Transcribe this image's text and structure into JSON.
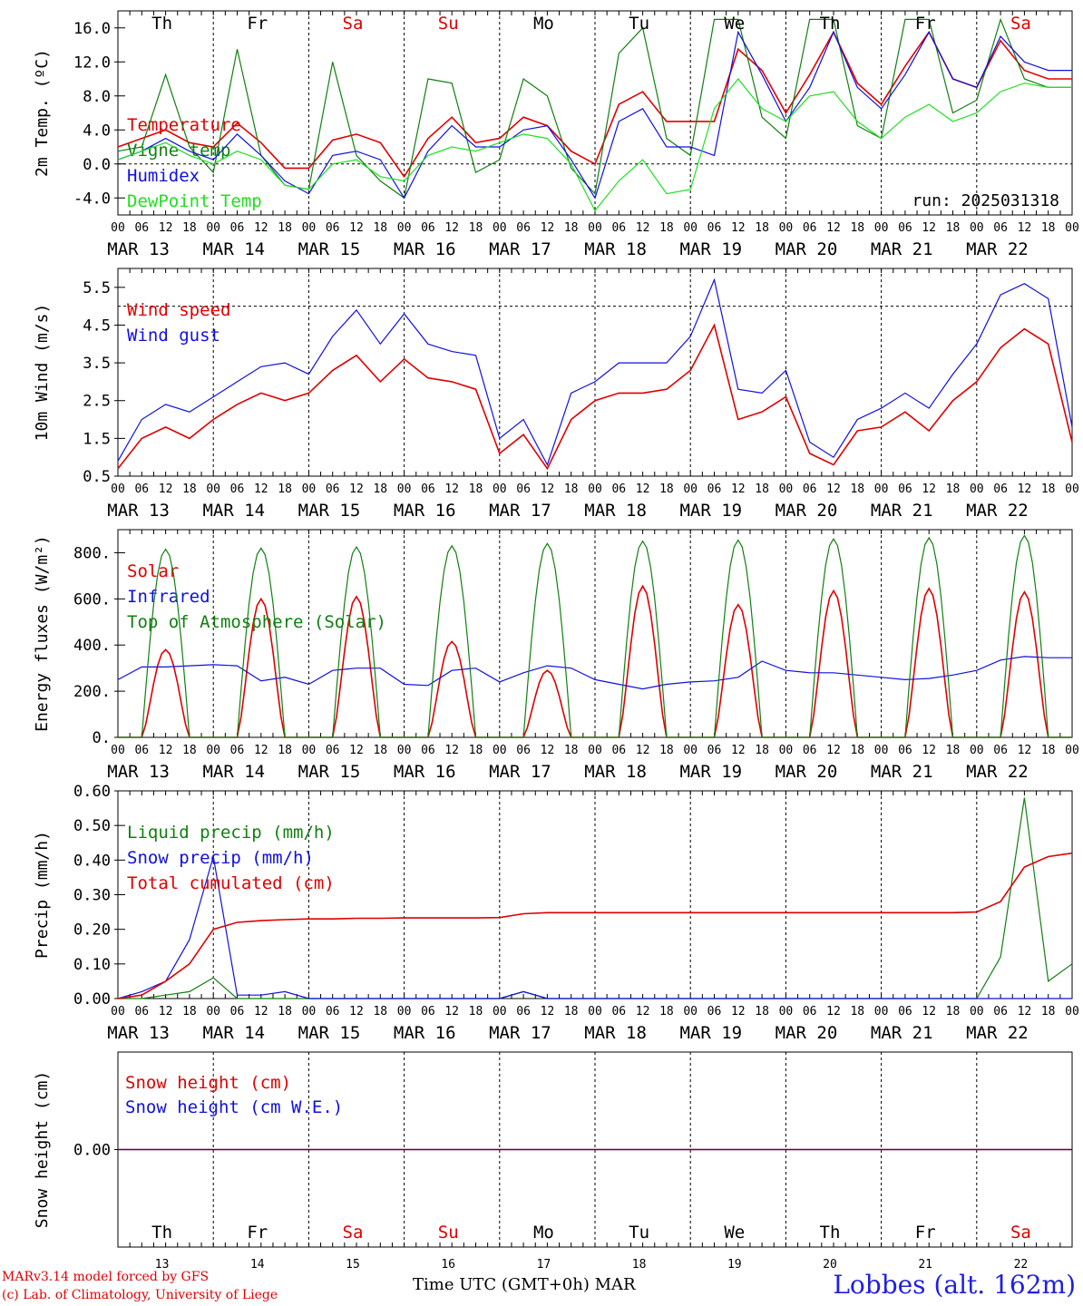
{
  "run_label": "run: 2025031318",
  "footer": {
    "credit_line1": "MARv3.14 model forced by GFS",
    "credit_line2": "(c) Lab. of Climatology, University of Liege",
    "axis_title": "Time UTC (GMT+0h)",
    "month_label": "MAR",
    "station": "Lobbes (alt. 162m)"
  },
  "days": [
    {
      "dow": "Th",
      "date": "MAR 13",
      "num": "13",
      "weekend": false
    },
    {
      "dow": "Fr",
      "date": "MAR 14",
      "num": "14",
      "weekend": false
    },
    {
      "dow": "Sa",
      "date": "MAR 15",
      "num": "15",
      "weekend": true
    },
    {
      "dow": "Su",
      "date": "MAR 16",
      "num": "16",
      "weekend": true
    },
    {
      "dow": "Mo",
      "date": "MAR 17",
      "num": "17",
      "weekend": false
    },
    {
      "dow": "Tu",
      "date": "MAR 18",
      "num": "18",
      "weekend": false
    },
    {
      "dow": "We",
      "date": "MAR 19",
      "num": "19",
      "weekend": false
    },
    {
      "dow": "Th",
      "date": "MAR 20",
      "num": "20",
      "weekend": false
    },
    {
      "dow": "Fr",
      "date": "MAR 21",
      "num": "21",
      "weekend": false
    },
    {
      "dow": "Sa",
      "date": "MAR 22",
      "num": "22",
      "weekend": true
    }
  ],
  "hour_ticks": [
    "00",
    "06",
    "12",
    "18"
  ],
  "colors": {
    "red": "#e00000",
    "green": "#108010",
    "blue": "#1010e0",
    "lightgreen": "#20e020",
    "weekend": "#e00000"
  },
  "chart_data": [
    {
      "type": "line",
      "ylabel": "2m Temp. (ºC)",
      "ylim": [
        -6,
        18
      ],
      "yticks": [
        -4,
        0,
        4,
        8,
        12,
        16
      ],
      "ytick_labels": [
        "-4.0",
        "0.0",
        "4.0",
        "8.0",
        "12.0",
        "16.0"
      ],
      "ref_line": 0,
      "x_hours": [
        0,
        6,
        12,
        18,
        24,
        30,
        36,
        42,
        48,
        54,
        60,
        66,
        72,
        78,
        84,
        90,
        96,
        102,
        108,
        114,
        120,
        126,
        132,
        138,
        144,
        150,
        156,
        162,
        168,
        174,
        180,
        186,
        192,
        198,
        204,
        210,
        216,
        222,
        228,
        234,
        240
      ],
      "series": [
        {
          "name": "Temperature",
          "color": "red",
          "values": [
            2.0,
            3.0,
            4.0,
            2.5,
            2.0,
            4.8,
            2.5,
            -0.5,
            -0.5,
            2.8,
            3.5,
            2.5,
            -1.5,
            3.0,
            5.5,
            2.5,
            3.0,
            5.5,
            4.5,
            1.5,
            0.0,
            7.0,
            8.5,
            5.0,
            5.0,
            5.0,
            13.5,
            11.0,
            6.0,
            10.5,
            15.5,
            9.5,
            7.0,
            11.5,
            15.5,
            10.0,
            9.0,
            14.5,
            11.0,
            10.0,
            10.0
          ]
        },
        {
          "name": "Vigne temp",
          "color": "green",
          "values": [
            1.5,
            2.0,
            10.5,
            2.0,
            -1.0,
            13.5,
            1.0,
            -2.5,
            -3.0,
            12.0,
            1.0,
            -2.0,
            -4.0,
            10.0,
            9.5,
            -1.0,
            0.5,
            10.0,
            8.0,
            -0.5,
            -3.5,
            13.0,
            16.0,
            3.0,
            1.0,
            17.0,
            17.0,
            5.5,
            3.0,
            17.0,
            17.0,
            4.5,
            3.0,
            17.0,
            17.0,
            6.0,
            7.5,
            17.0,
            10.0,
            9.0,
            9.0
          ]
        },
        {
          "name": "Humidex",
          "color": "blue",
          "values": [
            0.5,
            1.5,
            3.0,
            1.5,
            0.5,
            3.5,
            1.0,
            -2.0,
            -3.5,
            1.0,
            1.5,
            0.5,
            -4.0,
            1.5,
            4.5,
            2.0,
            2.0,
            4.0,
            4.5,
            0.5,
            -4.0,
            5.0,
            6.5,
            2.0,
            2.0,
            1.0,
            15.5,
            10.5,
            5.0,
            9.0,
            15.5,
            9.0,
            6.5,
            10.5,
            15.5,
            10.0,
            9.0,
            15.0,
            12.0,
            11.0,
            11.0
          ]
        },
        {
          "name": "DewPoint Temp",
          "color": "lightgreen",
          "values": [
            0.5,
            1.5,
            2.5,
            1.0,
            0.0,
            1.5,
            0.5,
            -2.5,
            -3.0,
            0.0,
            0.5,
            -1.5,
            -2.0,
            1.0,
            2.0,
            1.5,
            2.5,
            3.5,
            3.0,
            0.0,
            -5.5,
            -2.0,
            0.5,
            -3.5,
            -3.0,
            6.5,
            10.0,
            6.5,
            5.0,
            8.0,
            8.5,
            5.0,
            3.0,
            5.5,
            7.0,
            5.0,
            6.0,
            8.5,
            9.5,
            9.0,
            9.0
          ]
        }
      ]
    },
    {
      "type": "line",
      "ylabel": "10m Wind (m/s)",
      "ylim": [
        0.5,
        6.0
      ],
      "yticks": [
        0.5,
        1.5,
        2.5,
        3.5,
        4.5,
        5.5
      ],
      "ytick_labels": [
        "0.5",
        "1.5",
        "2.5",
        "3.5",
        "4.5",
        "5.5"
      ],
      "ref_line": 5,
      "x_hours": [
        0,
        6,
        12,
        18,
        24,
        30,
        36,
        42,
        48,
        54,
        60,
        66,
        72,
        78,
        84,
        90,
        96,
        102,
        108,
        114,
        120,
        126,
        132,
        138,
        144,
        150,
        156,
        162,
        168,
        174,
        180,
        186,
        192,
        198,
        204,
        210,
        216,
        222,
        228,
        234,
        240
      ],
      "series": [
        {
          "name": "Wind speed",
          "color": "red",
          "values": [
            0.7,
            1.5,
            1.8,
            1.5,
            2.0,
            2.4,
            2.7,
            2.5,
            2.7,
            3.3,
            3.7,
            3.0,
            3.6,
            3.1,
            3.0,
            2.8,
            1.1,
            1.6,
            0.7,
            2.0,
            2.5,
            2.7,
            2.7,
            2.8,
            3.3,
            4.5,
            2.0,
            2.2,
            2.6,
            1.1,
            0.8,
            1.7,
            1.8,
            2.2,
            1.7,
            2.5,
            3.0,
            3.9,
            4.4,
            4.0,
            1.4
          ]
        },
        {
          "name": "Wind gust",
          "color": "blue",
          "values": [
            0.9,
            2.0,
            2.4,
            2.2,
            2.6,
            3.0,
            3.4,
            3.5,
            3.2,
            4.2,
            4.9,
            4.0,
            4.8,
            4.0,
            3.8,
            3.7,
            1.5,
            2.0,
            0.8,
            2.7,
            3.0,
            3.5,
            3.5,
            3.5,
            4.2,
            5.7,
            2.8,
            2.7,
            3.3,
            1.4,
            1.0,
            2.0,
            2.3,
            2.7,
            2.3,
            3.2,
            4.0,
            5.3,
            5.6,
            5.2,
            1.8
          ]
        }
      ]
    },
    {
      "type": "line",
      "ylabel": "Energy fluxes (W/m²)",
      "ylim": [
        0,
        900
      ],
      "yticks": [
        0,
        200,
        400,
        600,
        800
      ],
      "ytick_labels": [
        "0.",
        "200.",
        "400.",
        "600.",
        "800."
      ],
      "x_hours": [
        0,
        6,
        12,
        18,
        24,
        30,
        36,
        42,
        48,
        54,
        60,
        66,
        72,
        78,
        84,
        90,
        96,
        102,
        108,
        114,
        120,
        126,
        132,
        138,
        144,
        150,
        156,
        162,
        168,
        174,
        180,
        186,
        192,
        198,
        204,
        210,
        216,
        222,
        228,
        234,
        240
      ],
      "series": [
        {
          "name": "Solar",
          "color": "red",
          "diurnal_peaks": [
            380,
            600,
            610,
            415,
            290,
            655,
            575,
            635,
            645,
            630
          ]
        },
        {
          "name": "Infrared",
          "color": "blue",
          "values": [
            250,
            305,
            305,
            310,
            315,
            310,
            245,
            260,
            230,
            290,
            300,
            300,
            230,
            225,
            290,
            300,
            240,
            280,
            310,
            300,
            250,
            230,
            210,
            230,
            240,
            245,
            260,
            330,
            290,
            280,
            280,
            270,
            260,
            250,
            255,
            270,
            290,
            335,
            350,
            345,
            345
          ]
        },
        {
          "name": "Top of Atmosphere (Solar)",
          "color": "green",
          "diurnal_peaks": [
            815,
            820,
            825,
            830,
            840,
            850,
            855,
            860,
            865,
            875
          ]
        }
      ]
    },
    {
      "type": "line",
      "ylabel": "Precip (mm/h)",
      "ylim": [
        0,
        0.6
      ],
      "yticks": [
        0,
        0.1,
        0.2,
        0.3,
        0.4,
        0.5,
        0.6
      ],
      "ytick_labels": [
        "0.00",
        "0.10",
        "0.20",
        "0.30",
        "0.40",
        "0.50",
        "0.60"
      ],
      "x_hours": [
        0,
        6,
        12,
        18,
        24,
        30,
        36,
        42,
        48,
        54,
        60,
        66,
        72,
        78,
        84,
        90,
        96,
        102,
        108,
        114,
        120,
        126,
        132,
        138,
        144,
        150,
        156,
        162,
        168,
        174,
        180,
        186,
        192,
        198,
        204,
        210,
        216,
        222,
        228,
        234,
        240
      ],
      "series": [
        {
          "name": "Liquid precip (mm/h)",
          "color": "green",
          "values": [
            0,
            0,
            0.01,
            0.02,
            0.06,
            0,
            0,
            0,
            0,
            0,
            0,
            0,
            0,
            0,
            0,
            0,
            0,
            0.02,
            0,
            0,
            0,
            0,
            0,
            0,
            0,
            0,
            0,
            0,
            0,
            0,
            0,
            0,
            0,
            0,
            0,
            0,
            0,
            0.12,
            0.58,
            0.05,
            0.1
          ]
        },
        {
          "name": "Snow precip (mm/h)",
          "color": "blue",
          "values": [
            0,
            0.02,
            0.05,
            0.17,
            0.41,
            0.01,
            0.01,
            0.02,
            0,
            0,
            0,
            0,
            0,
            0,
            0,
            0,
            0,
            0.02,
            0,
            0,
            0,
            0,
            0,
            0,
            0,
            0,
            0,
            0,
            0,
            0,
            0,
            0,
            0,
            0,
            0,
            0,
            0,
            0,
            0,
            0,
            0
          ]
        },
        {
          "name": "Total cumulated (cm)",
          "color": "red",
          "values": [
            0,
            0.01,
            0.05,
            0.1,
            0.2,
            0.22,
            0.225,
            0.228,
            0.23,
            0.23,
            0.232,
            0.232,
            0.233,
            0.233,
            0.233,
            0.233,
            0.234,
            0.245,
            0.248,
            0.248,
            0.248,
            0.248,
            0.248,
            0.248,
            0.248,
            0.248,
            0.248,
            0.248,
            0.248,
            0.248,
            0.248,
            0.248,
            0.248,
            0.248,
            0.248,
            0.248,
            0.25,
            0.28,
            0.38,
            0.41,
            0.42
          ]
        }
      ]
    },
    {
      "type": "line",
      "ylabel": "Snow height (cm)",
      "ylim": [
        -1,
        1
      ],
      "yticks": [
        0
      ],
      "ytick_labels": [
        "0.00"
      ],
      "x_hours": [
        0,
        240
      ],
      "series": [
        {
          "name": "Snow height (cm)",
          "color": "red",
          "values": [
            0,
            0
          ]
        },
        {
          "name": "Snow height (cm W.E.)",
          "color": "blue",
          "values": [
            0,
            0
          ]
        }
      ]
    }
  ]
}
